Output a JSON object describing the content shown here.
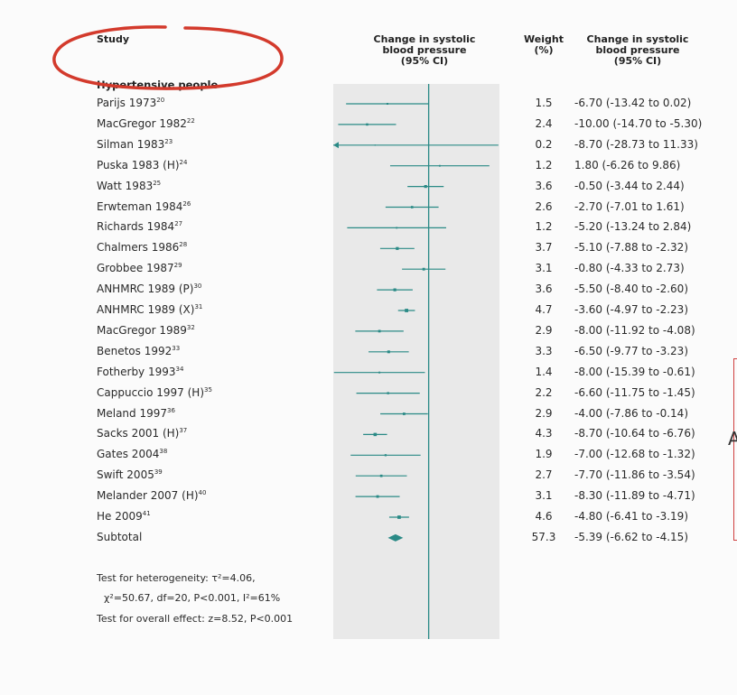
{
  "headers": {
    "study": "Study",
    "effect": [
      "Change in systolic",
      "blood pressure",
      "(95% CI)"
    ],
    "weight": [
      "Weight",
      "(%)"
    ],
    "ci": [
      "Change in systolic",
      "blood pressure",
      "(95% CI)"
    ]
  },
  "group_label": "Hypertensive people",
  "footer": {
    "heterogeneity_1": "Test for heterogeneity: τ²=4.06,",
    "heterogeneity_2": "χ²=50.67, df=20, P<0.001, I²=61%",
    "overall": "Test for overall effect: z=8.52, P<0.001"
  },
  "right_glyph": "A",
  "colors": {
    "accent": "#2a8a86",
    "plot_bg": "#e9e9e9",
    "annotation": "#d33a2c"
  },
  "chart_data": {
    "type": "forest",
    "title": "",
    "null_line": 0,
    "xlim": [
      -15.5,
      11.5
    ],
    "studies": [
      {
        "name": "Parijs 1973",
        "ref": "20",
        "weight": "1.5",
        "est": -6.7,
        "lo": -13.42,
        "hi": 0.02,
        "ci_text": "-6.70 (-13.42 to 0.02)"
      },
      {
        "name": "MacGregor 1982",
        "ref": "22",
        "weight": "2.4",
        "est": -10.0,
        "lo": -14.7,
        "hi": -5.3,
        "ci_text": "-10.00 (-14.70 to -5.30)"
      },
      {
        "name": "Silman 1983",
        "ref": "23",
        "weight": "0.2",
        "est": -8.7,
        "lo": -28.73,
        "hi": 11.33,
        "ci_text": "-8.70 (-28.73 to 11.33)"
      },
      {
        "name": "Puska 1983 (H)",
        "ref": "24",
        "weight": "1.2",
        "est": 1.8,
        "lo": -6.26,
        "hi": 9.86,
        "ci_text": "1.80 (-6.26 to 9.86)"
      },
      {
        "name": "Watt 1983",
        "ref": "25",
        "weight": "3.6",
        "est": -0.5,
        "lo": -3.44,
        "hi": 2.44,
        "ci_text": "-0.50 (-3.44 to 2.44)"
      },
      {
        "name": "Erwteman 1984",
        "ref": "26",
        "weight": "2.6",
        "est": -2.7,
        "lo": -7.01,
        "hi": 1.61,
        "ci_text": "-2.70 (-7.01 to 1.61)"
      },
      {
        "name": "Richards 1984",
        "ref": "27",
        "weight": "1.2",
        "est": -5.2,
        "lo": -13.24,
        "hi": 2.84,
        "ci_text": "-5.20 (-13.24 to 2.84)"
      },
      {
        "name": "Chalmers 1986",
        "ref": "28",
        "weight": "3.7",
        "est": -5.1,
        "lo": -7.88,
        "hi": -2.32,
        "ci_text": "-5.10 (-7.88 to -2.32)"
      },
      {
        "name": "Grobbee 1987",
        "ref": "29",
        "weight": "3.1",
        "est": -0.8,
        "lo": -4.33,
        "hi": 2.73,
        "ci_text": "-0.80 (-4.33 to 2.73)"
      },
      {
        "name": "ANHMRC 1989 (P)",
        "ref": "30",
        "weight": "3.6",
        "est": -5.5,
        "lo": -8.4,
        "hi": -2.6,
        "ci_text": "-5.50 (-8.40 to -2.60)"
      },
      {
        "name": "ANHMRC 1989 (X)",
        "ref": "31",
        "weight": "4.7",
        "est": -3.6,
        "lo": -4.97,
        "hi": -2.23,
        "ci_text": "-3.60 (-4.97 to -2.23)"
      },
      {
        "name": "MacGregor 1989",
        "ref": "32",
        "weight": "2.9",
        "est": -8.0,
        "lo": -11.92,
        "hi": -4.08,
        "ci_text": "-8.00 (-11.92 to -4.08)"
      },
      {
        "name": "Benetos 1992",
        "ref": "33",
        "weight": "3.3",
        "est": -6.5,
        "lo": -9.77,
        "hi": -3.23,
        "ci_text": "-6.50 (-9.77 to -3.23)"
      },
      {
        "name": "Fotherby 1993",
        "ref": "34",
        "weight": "1.4",
        "est": -8.0,
        "lo": -15.39,
        "hi": -0.61,
        "ci_text": "-8.00 (-15.39 to -0.61)"
      },
      {
        "name": "Cappuccio 1997 (H)",
        "ref": "35",
        "weight": "2.2",
        "est": -6.6,
        "lo": -11.75,
        "hi": -1.45,
        "ci_text": "-6.60 (-11.75 to -1.45)"
      },
      {
        "name": "Meland 1997",
        "ref": "36",
        "weight": "2.9",
        "est": -4.0,
        "lo": -7.86,
        "hi": -0.14,
        "ci_text": "-4.00 (-7.86 to -0.14)"
      },
      {
        "name": "Sacks 2001 (H)",
        "ref": "37",
        "weight": "4.3",
        "est": -8.7,
        "lo": -10.64,
        "hi": -6.76,
        "ci_text": "-8.70 (-10.64 to -6.76)"
      },
      {
        "name": "Gates 2004",
        "ref": "38",
        "weight": "1.9",
        "est": -7.0,
        "lo": -12.68,
        "hi": -1.32,
        "ci_text": "-7.00 (-12.68 to -1.32)"
      },
      {
        "name": "Swift 2005",
        "ref": "39",
        "weight": "2.7",
        "est": -7.7,
        "lo": -11.86,
        "hi": -3.54,
        "ci_text": "-7.70 (-11.86 to -3.54)"
      },
      {
        "name": "Melander 2007 (H)",
        "ref": "40",
        "weight": "3.1",
        "est": -8.3,
        "lo": -11.89,
        "hi": -4.71,
        "ci_text": "-8.30 (-11.89 to -4.71)"
      },
      {
        "name": "He 2009",
        "ref": "41",
        "weight": "4.6",
        "est": -4.8,
        "lo": -6.41,
        "hi": -3.19,
        "ci_text": "-4.80 (-6.41 to -3.19)"
      }
    ],
    "subtotal": {
      "name": "Subtotal",
      "weight": "57.3",
      "est": -5.39,
      "lo": -6.62,
      "hi": -4.15,
      "ci_text": "-5.39 (-6.62 to -4.15)"
    }
  }
}
